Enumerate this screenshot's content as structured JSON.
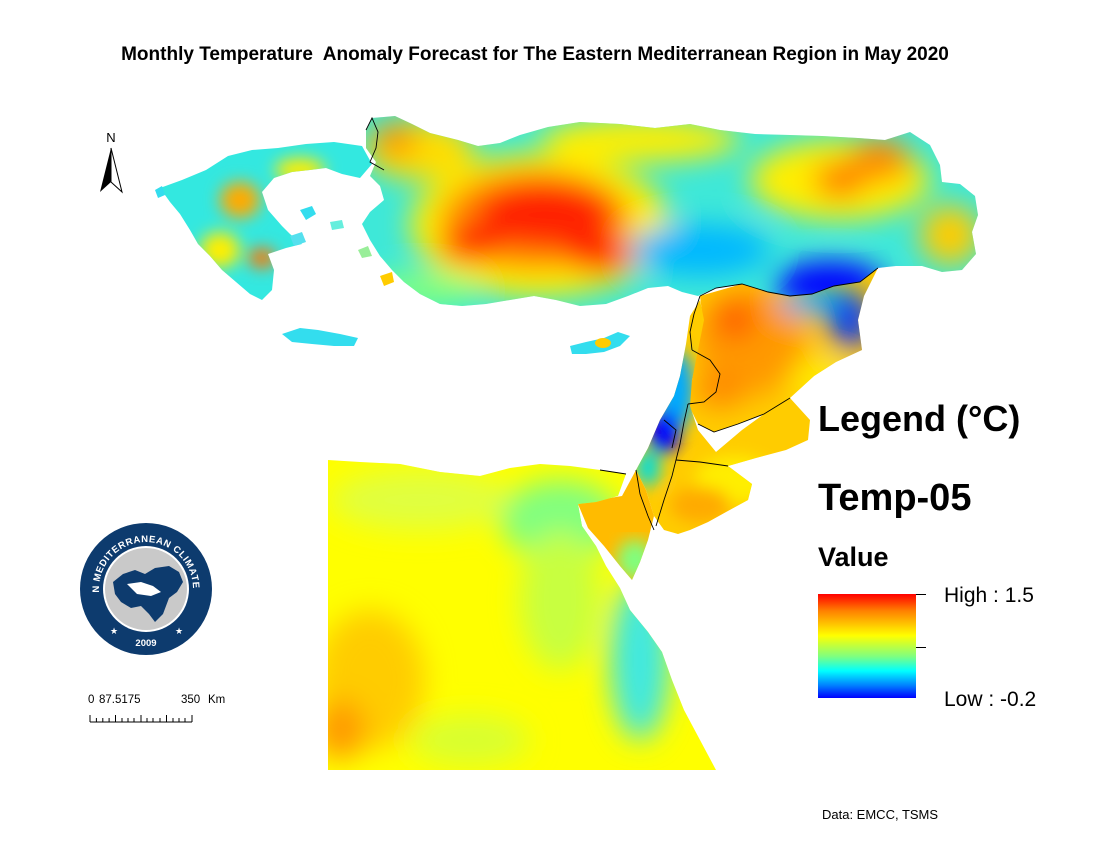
{
  "title": "Monthly Temperature  Anomaly Forecast for The Eastern Mediterranean Region in May 2020",
  "north_arrow": {
    "label": "N"
  },
  "legend": {
    "title": "Legend (°C)",
    "layer": "Temp-05",
    "field": "Value",
    "high_label": "High : 1.5",
    "low_label": "Low : -0.2",
    "high_value": 1.5,
    "low_value": -0.2,
    "ramp_colors": [
      "#ff0000",
      "#ff7f00",
      "#ffff00",
      "#7fff7f",
      "#00ffff",
      "#0080ff",
      "#0000ff"
    ]
  },
  "scale_bar": {
    "tick_0": "0",
    "tick_1": "87.5175",
    "tick_2": "350",
    "unit": "Km"
  },
  "logo": {
    "text": "EASTERN MEDITERRANEAN CLIMATE CENTRE",
    "year": "2009",
    "color": "#0d3b6e"
  },
  "credit": "Data: EMCC, TSMS"
}
